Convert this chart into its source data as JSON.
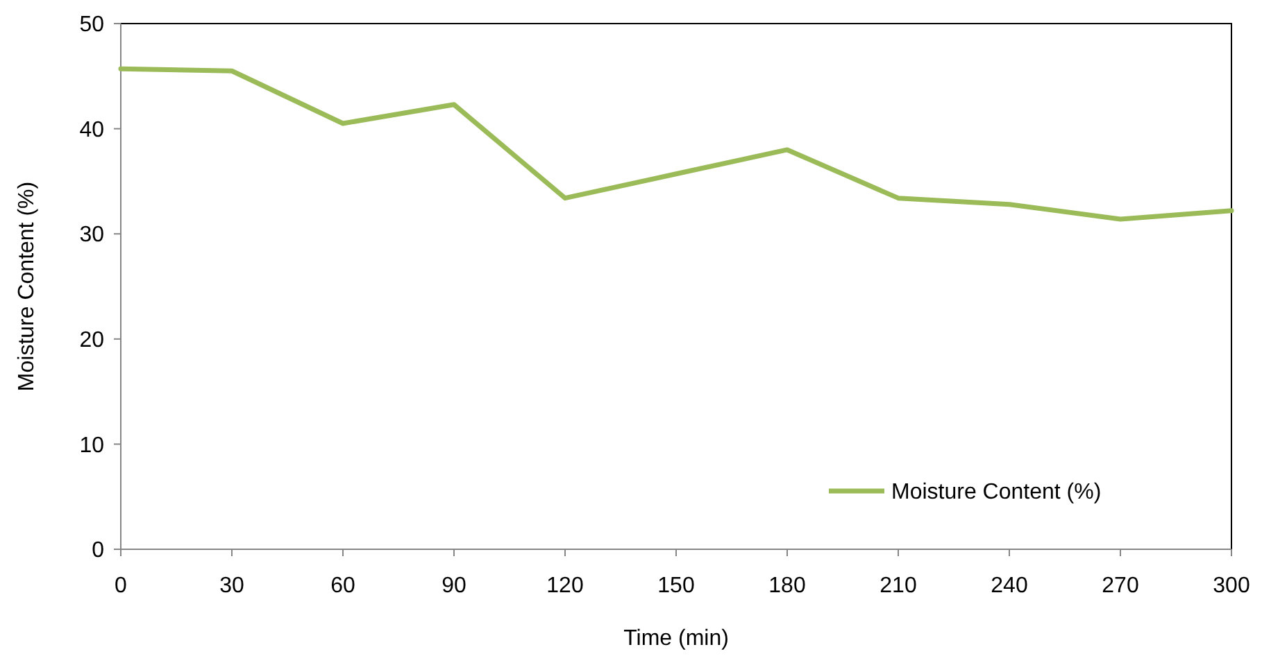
{
  "chart_data": {
    "type": "line",
    "xlabel": "Time (min)",
    "ylabel": "Moisture Content (%)",
    "x": [
      0,
      30,
      60,
      90,
      120,
      150,
      180,
      210,
      240,
      270,
      300
    ],
    "series": [
      {
        "name": "Moisture Content (%)",
        "color": "#9bbb59",
        "values": [
          45.7,
          45.5,
          40.5,
          42.3,
          33.4,
          35.7,
          38.0,
          33.4,
          32.8,
          31.4,
          32.2
        ]
      }
    ],
    "xlim": [
      0,
      300
    ],
    "xticks": [
      0,
      30,
      60,
      90,
      120,
      150,
      180,
      210,
      240,
      270,
      300
    ],
    "ylim": [
      0,
      50
    ],
    "yticks": [
      0,
      10,
      20,
      30,
      40,
      50
    ],
    "grid": false,
    "legend": "bottom right",
    "marker": "none",
    "line_style": "solid"
  }
}
